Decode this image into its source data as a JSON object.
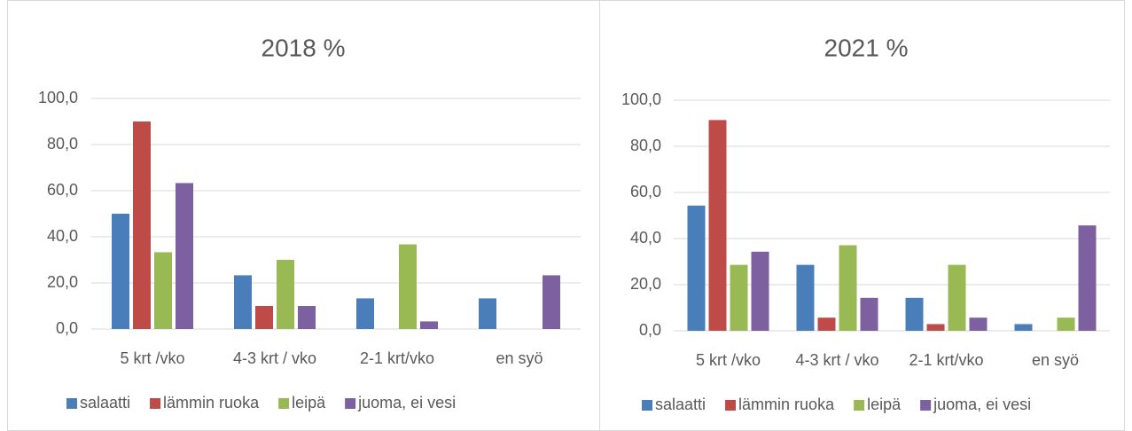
{
  "chart_data": [
    {
      "type": "bar",
      "title": "2018 %",
      "categories": [
        "5 krt /vko",
        "4-3 krt / vko",
        "2-1 krt/vko",
        "en syö"
      ],
      "series": [
        {
          "name": "salaatti",
          "color": "#4a7ebb",
          "values": [
            50.0,
            23.3,
            13.3,
            13.3
          ]
        },
        {
          "name": "lämmin ruoka",
          "color": "#be4b48",
          "values": [
            90.0,
            10.0,
            0,
            0
          ]
        },
        {
          "name": "leipä",
          "color": "#98b954",
          "values": [
            33.3,
            30.0,
            36.7,
            0
          ]
        },
        {
          "name": "juoma, ei vesi",
          "color": "#7d60a0",
          "values": [
            63.3,
            10.0,
            3.3,
            23.3
          ]
        }
      ],
      "ylim": [
        0,
        100
      ],
      "yticks": [
        {
          "value": 0,
          "label": "0,0"
        },
        {
          "value": 20,
          "label": "20,0"
        },
        {
          "value": 40,
          "label": "40,0"
        },
        {
          "value": 60,
          "label": "60,0"
        },
        {
          "value": 80,
          "label": "80,0"
        },
        {
          "value": 100,
          "label": "100,0"
        }
      ],
      "grid": true,
      "legend": "bottom"
    },
    {
      "type": "bar",
      "title": "2021 %",
      "categories": [
        "5 krt /vko",
        "4-3 krt / vko",
        "2-1 krt/vko",
        "en syö"
      ],
      "series": [
        {
          "name": "salaatti",
          "color": "#4a7ebb",
          "values": [
            54.3,
            28.6,
            14.3,
            2.9
          ]
        },
        {
          "name": "lämmin ruoka",
          "color": "#be4b48",
          "values": [
            91.4,
            5.7,
            2.9,
            0
          ]
        },
        {
          "name": "leipä",
          "color": "#98b954",
          "values": [
            28.6,
            37.1,
            28.6,
            5.7
          ]
        },
        {
          "name": "juoma, ei vesi",
          "color": "#7d60a0",
          "values": [
            34.3,
            14.3,
            5.7,
            45.7
          ]
        }
      ],
      "ylim": [
        0,
        100
      ],
      "yticks": [
        {
          "value": 0,
          "label": "0,0"
        },
        {
          "value": 20,
          "label": "20,0"
        },
        {
          "value": 40,
          "label": "40,0"
        },
        {
          "value": 60,
          "label": "60,0"
        },
        {
          "value": 80,
          "label": "80,0"
        },
        {
          "value": 100,
          "label": "100,0"
        }
      ],
      "grid": true,
      "legend": "bottom"
    }
  ]
}
